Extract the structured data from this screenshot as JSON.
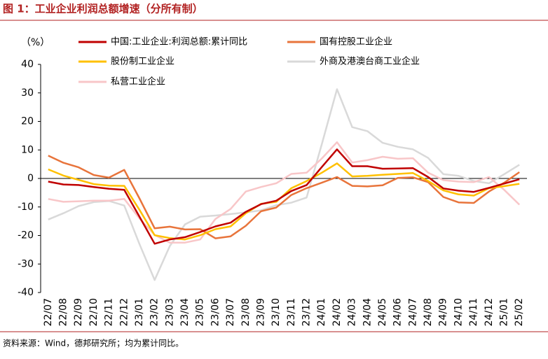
{
  "chart_data": {
    "type": "line",
    "title": "图 1：工业企业利润总额增速（分所有制）",
    "y_label": "（%）",
    "source": "资料来源：Wind，德邦研究所；均为累计同比。",
    "categories": [
      "22/07",
      "22/08",
      "22/09",
      "22/10",
      "22/11",
      "22/12",
      "23/01",
      "23/02",
      "23/03",
      "23/04",
      "23/05",
      "23/06",
      "23/07",
      "23/08",
      "23/09",
      "23/10",
      "23/11",
      "23/12",
      "24/01",
      "24/02",
      "24/03",
      "24/04",
      "24/05",
      "24/06",
      "24/07",
      "24/08",
      "24/09",
      "24/10",
      "24/11",
      "24/12",
      "25/01",
      "25/02"
    ],
    "series": [
      {
        "name": "中国:工业企业:利润总额:累计同比",
        "color": "#c00000",
        "values": [
          -1.1,
          -2.1,
          -2.3,
          -3.0,
          -3.6,
          -4.0,
          -13.4,
          -22.9,
          -21.4,
          -20.6,
          -18.8,
          -16.8,
          -15.5,
          -11.7,
          -9.0,
          -7.8,
          -4.4,
          -2.3,
          4.0,
          10.2,
          4.3,
          4.3,
          3.4,
          3.5,
          3.6,
          0.5,
          -3.5,
          -4.3,
          -4.7,
          -3.3,
          -1.8,
          -0.3
        ]
      },
      {
        "name": "国有控股工业企业",
        "color": "#e8743b",
        "values": [
          8.0,
          5.5,
          3.9,
          1.2,
          0.3,
          3.0,
          -7.0,
          -17.5,
          -16.9,
          -17.9,
          -17.8,
          -21.0,
          -20.3,
          -16.6,
          -11.5,
          -10.2,
          -5.8,
          -3.4,
          -1.5,
          0.5,
          -2.6,
          -2.8,
          -2.4,
          0.2,
          0.4,
          -1.3,
          -6.5,
          -8.4,
          -8.6,
          -4.6,
          -1.5,
          2.2
        ]
      },
      {
        "name": "股份制工业企业",
        "color": "#ffc000",
        "values": [
          3.2,
          1.0,
          -0.5,
          -2.0,
          -2.5,
          -2.6,
          -11.0,
          -19.9,
          -20.9,
          -21.4,
          -19.9,
          -17.8,
          -16.8,
          -12.2,
          -8.9,
          -8.2,
          -3.4,
          -0.9,
          2.0,
          5.3,
          0.7,
          0.9,
          1.3,
          1.6,
          1.9,
          -0.9,
          -4.2,
          -5.6,
          -6.0,
          -3.4,
          -2.7,
          -1.9
        ]
      },
      {
        "name": "外商及港澳台商工业企业",
        "color": "#d9d9d9",
        "values": [
          -14.4,
          -12.2,
          -9.7,
          -8.3,
          -7.9,
          -9.5,
          -23.0,
          -35.6,
          -23.7,
          -16.1,
          -13.4,
          -13.0,
          -12.5,
          -11.9,
          -11.2,
          -9.4,
          -8.5,
          -6.7,
          12.0,
          31.3,
          18.0,
          16.6,
          12.5,
          11.1,
          10.2,
          7.2,
          1.5,
          0.9,
          -0.9,
          -1.7,
          1.5,
          4.8
        ]
      },
      {
        "name": "私营工业企业",
        "color": "#f8c6c8",
        "values": [
          -7.2,
          -8.2,
          -8.0,
          -7.8,
          -7.8,
          -7.2,
          -14.0,
          -19.8,
          -22.5,
          -22.5,
          -21.4,
          -14.2,
          -10.7,
          -4.6,
          -3.0,
          -1.7,
          1.6,
          2.0,
          7.0,
          12.7,
          5.6,
          6.4,
          7.6,
          6.9,
          7.1,
          2.0,
          -0.6,
          -1.1,
          -1.3,
          0.5,
          -4.0,
          -9.2
        ]
      }
    ],
    "ylim": [
      -40,
      40
    ],
    "yticks": [
      -40,
      -30,
      -20,
      -10,
      0,
      10,
      20,
      30,
      40
    ]
  }
}
